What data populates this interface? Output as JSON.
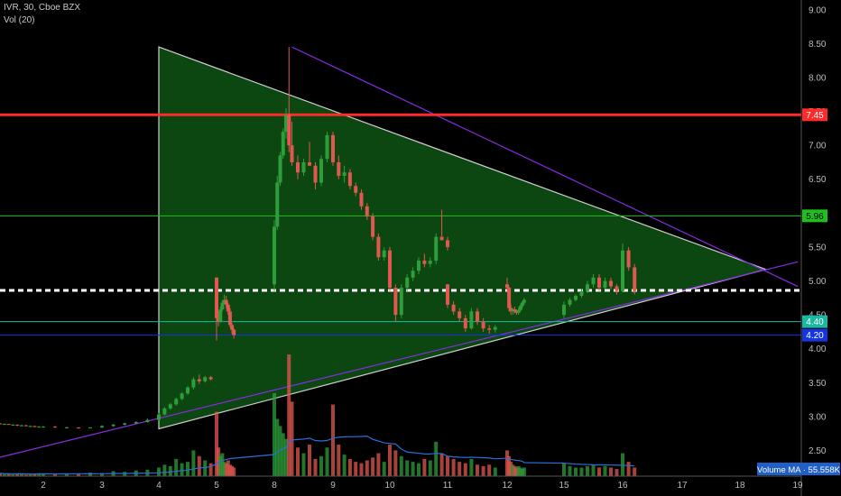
{
  "header": {
    "symbol_line": "IVR, 30, Cboe BZX",
    "volume_line": "Vol (20)"
  },
  "colors": {
    "background": "#000000",
    "up": "#2e9e3a",
    "down": "#e0584f",
    "triangle_fill": "#0d4a12",
    "triangle_edge": "#cfcfcf",
    "trendline": "#8a2be2",
    "volume_ma": "#2a6fd6"
  },
  "chart_data": {
    "type": "candlestick",
    "title": "",
    "y_axis": {
      "min": 2.4,
      "max": 9.05,
      "ticks": [
        "9.00",
        "8.50",
        "8.00",
        "7.50",
        "7.00",
        "6.50",
        "6.00",
        "5.50",
        "5.00",
        "4.50",
        "4.00",
        "3.50",
        "3.00",
        "2.50"
      ]
    },
    "x_axis": {
      "ticks": [
        "2",
        "3",
        "4",
        "5",
        "8",
        "9",
        "10",
        "11",
        "12",
        "15",
        "16",
        "17",
        "18",
        "19"
      ]
    },
    "horizontal_levels": [
      {
        "price": 7.45,
        "label": "7.45",
        "color": "#ff2a2a",
        "width": 3
      },
      {
        "price": 5.96,
        "label": "5.96",
        "color": "#1fbf1f",
        "width": 1
      },
      {
        "price": 4.86,
        "label": "",
        "color": "#ffffff",
        "width": 3,
        "style": "dashed"
      },
      {
        "price": 4.4,
        "label": "4.40",
        "color": "#19b8a0",
        "width": 1
      },
      {
        "price": 4.2,
        "label": "4.20",
        "color": "#1535e0",
        "width": 1
      }
    ],
    "triangle": {
      "points": [
        [
          4.0,
          8.45
        ],
        [
          18.45,
          5.17
        ],
        [
          4.0,
          2.82
        ]
      ]
    },
    "trendlines": [
      {
        "from": [
          0.0,
          2.4
        ],
        "to": [
          19.0,
          5.28
        ]
      },
      {
        "from": [
          8.3,
          8.45
        ],
        "to": [
          19.0,
          4.92
        ]
      }
    ],
    "candles": [
      [
        0.0,
        2.9,
        2.9,
        2.88,
        2.89
      ],
      [
        0.2,
        2.89,
        2.9,
        2.88,
        2.89
      ],
      [
        0.4,
        2.89,
        2.89,
        2.88,
        2.88
      ],
      [
        0.6,
        2.88,
        2.89,
        2.87,
        2.88
      ],
      [
        0.8,
        2.88,
        2.88,
        2.86,
        2.87
      ],
      [
        1.0,
        2.87,
        2.88,
        2.86,
        2.87
      ],
      [
        1.2,
        2.87,
        2.88,
        2.86,
        2.86
      ],
      [
        1.4,
        2.86,
        2.87,
        2.85,
        2.86
      ],
      [
        1.6,
        2.86,
        2.86,
        2.84,
        2.85
      ],
      [
        1.8,
        2.85,
        2.86,
        2.84,
        2.85
      ],
      [
        2.0,
        2.85,
        2.86,
        2.84,
        2.85
      ],
      [
        2.2,
        2.85,
        2.86,
        2.84,
        2.84
      ],
      [
        2.4,
        2.84,
        2.85,
        2.83,
        2.84
      ],
      [
        2.6,
        2.84,
        2.84,
        2.82,
        2.83
      ],
      [
        2.8,
        2.83,
        2.84,
        2.82,
        2.84
      ],
      [
        3.0,
        2.84,
        2.87,
        2.83,
        2.86
      ],
      [
        3.2,
        2.86,
        2.89,
        2.85,
        2.88
      ],
      [
        3.4,
        2.88,
        2.91,
        2.87,
        2.9
      ],
      [
        3.6,
        2.9,
        2.93,
        2.89,
        2.92
      ],
      [
        3.8,
        2.92,
        2.97,
        2.91,
        2.95
      ],
      [
        4.0,
        2.95,
        3.05,
        2.94,
        3.03
      ],
      [
        4.1,
        3.03,
        3.14,
        3.02,
        3.12
      ],
      [
        4.2,
        3.12,
        3.2,
        3.1,
        3.18
      ],
      [
        4.3,
        3.18,
        3.28,
        3.16,
        3.26
      ],
      [
        4.4,
        3.26,
        3.36,
        3.24,
        3.34
      ],
      [
        4.5,
        3.34,
        3.45,
        3.32,
        3.43
      ],
      [
        4.6,
        3.43,
        3.58,
        3.4,
        3.55
      ],
      [
        4.7,
        3.55,
        3.62,
        3.48,
        3.52
      ],
      [
        4.8,
        3.52,
        3.6,
        3.5,
        3.58
      ],
      [
        4.9,
        3.58,
        3.6,
        3.53,
        3.55
      ],
      [
        5.0,
        5.05,
        5.05,
        4.12,
        4.45
      ],
      [
        5.1,
        4.45,
        4.55,
        4.33,
        4.4
      ],
      [
        5.2,
        4.4,
        4.62,
        4.38,
        4.58
      ],
      [
        5.3,
        4.58,
        4.72,
        4.55,
        4.68
      ],
      [
        5.4,
        4.68,
        4.8,
        4.66,
        4.72
      ],
      [
        5.5,
        4.72,
        4.78,
        4.6,
        4.65
      ],
      [
        5.6,
        4.65,
        4.68,
        4.5,
        4.55
      ],
      [
        5.7,
        4.55,
        4.6,
        4.32,
        4.35
      ],
      [
        5.8,
        4.35,
        4.38,
        4.22,
        4.28
      ],
      [
        5.9,
        4.28,
        4.3,
        4.15,
        4.2
      ],
      [
        8.0,
        4.95,
        5.9,
        4.85,
        5.8
      ],
      [
        8.05,
        5.8,
        6.55,
        5.75,
        6.45
      ],
      [
        8.1,
        6.45,
        6.9,
        6.4,
        6.85
      ],
      [
        8.15,
        6.85,
        7.25,
        6.8,
        7.2
      ],
      [
        8.2,
        7.2,
        7.55,
        7.1,
        7.45
      ],
      [
        8.25,
        7.45,
        8.45,
        6.9,
        7.0
      ],
      [
        8.3,
        7.0,
        7.35,
        6.7,
        6.75
      ],
      [
        8.4,
        6.75,
        6.85,
        6.5,
        6.6
      ],
      [
        8.5,
        6.6,
        6.8,
        6.55,
        6.75
      ],
      [
        8.6,
        6.75,
        7.05,
        6.7,
        6.7
      ],
      [
        8.7,
        6.7,
        6.75,
        6.35,
        6.45
      ],
      [
        8.8,
        6.45,
        6.85,
        6.4,
        6.8
      ],
      [
        8.9,
        6.8,
        7.2,
        6.75,
        7.15
      ],
      [
        9.0,
        7.15,
        7.2,
        6.7,
        6.75
      ],
      [
        9.1,
        6.75,
        6.85,
        6.5,
        6.55
      ],
      [
        9.2,
        6.55,
        6.7,
        6.45,
        6.6
      ],
      [
        9.3,
        6.6,
        6.65,
        6.35,
        6.4
      ],
      [
        9.4,
        6.4,
        6.45,
        6.25,
        6.3
      ],
      [
        9.5,
        6.3,
        6.35,
        6.05,
        6.1
      ],
      [
        9.6,
        6.1,
        6.15,
        5.9,
        5.95
      ],
      [
        9.7,
        5.95,
        6.0,
        5.6,
        5.65
      ],
      [
        9.8,
        5.65,
        5.7,
        5.3,
        5.35
      ],
      [
        9.9,
        5.35,
        5.5,
        5.3,
        5.45
      ],
      [
        10.0,
        5.45,
        5.5,
        4.85,
        4.9
      ],
      [
        10.1,
        4.9,
        4.95,
        4.4,
        4.5
      ],
      [
        10.2,
        4.5,
        4.95,
        4.45,
        4.9
      ],
      [
        10.3,
        4.9,
        5.1,
        4.85,
        5.05
      ],
      [
        10.4,
        5.05,
        5.2,
        5.0,
        5.15
      ],
      [
        10.5,
        5.15,
        5.35,
        5.1,
        5.3
      ],
      [
        10.6,
        5.3,
        5.4,
        5.2,
        5.25
      ],
      [
        10.7,
        5.25,
        5.35,
        5.2,
        5.3
      ],
      [
        10.8,
        5.3,
        5.7,
        5.25,
        5.65
      ],
      [
        10.9,
        5.65,
        6.05,
        5.6,
        5.6
      ],
      [
        11.0,
        5.6,
        5.65,
        5.45,
        5.5
      ],
      [
        11.0,
        4.95,
        4.95,
        4.6,
        4.65
      ],
      [
        11.1,
        4.65,
        4.7,
        4.5,
        4.55
      ],
      [
        11.2,
        4.55,
        4.6,
        4.4,
        4.45
      ],
      [
        11.3,
        4.45,
        4.5,
        4.25,
        4.3
      ],
      [
        11.4,
        4.3,
        4.6,
        4.28,
        4.55
      ],
      [
        11.5,
        4.55,
        4.6,
        4.35,
        4.4
      ],
      [
        11.6,
        4.4,
        4.45,
        4.25,
        4.3
      ],
      [
        11.7,
        4.3,
        4.35,
        4.22,
        4.28
      ],
      [
        11.8,
        4.28,
        4.35,
        4.24,
        4.32
      ],
      [
        12.0,
        4.95,
        5.05,
        4.85,
        4.9
      ],
      [
        12.1,
        4.9,
        4.92,
        4.55,
        4.6
      ],
      [
        12.2,
        4.6,
        4.65,
        4.5,
        4.55
      ],
      [
        12.3,
        4.55,
        4.6,
        4.5,
        4.58
      ],
      [
        12.4,
        4.58,
        4.62,
        4.52,
        4.55
      ],
      [
        12.5,
        4.55,
        4.58,
        4.5,
        4.53
      ],
      [
        12.6,
        4.53,
        4.6,
        4.5,
        4.57
      ],
      [
        12.7,
        4.57,
        4.65,
        4.55,
        4.63
      ],
      [
        12.8,
        4.63,
        4.7,
        4.6,
        4.68
      ],
      [
        12.9,
        4.68,
        4.75,
        4.65,
        4.72
      ],
      [
        15.0,
        4.5,
        4.7,
        4.45,
        4.65
      ],
      [
        15.1,
        4.65,
        4.75,
        4.62,
        4.72
      ],
      [
        15.2,
        4.72,
        4.8,
        4.7,
        4.78
      ],
      [
        15.3,
        4.78,
        4.88,
        4.75,
        4.85
      ],
      [
        15.4,
        4.85,
        5.0,
        4.82,
        4.95
      ],
      [
        15.5,
        4.95,
        5.1,
        4.9,
        5.05
      ],
      [
        15.6,
        5.05,
        5.1,
        4.85,
        4.9
      ],
      [
        15.7,
        4.9,
        5.05,
        4.88,
        5.0
      ],
      [
        15.8,
        5.0,
        5.05,
        4.88,
        4.92
      ],
      [
        15.9,
        4.92,
        4.95,
        4.8,
        4.85
      ],
      [
        16.0,
        4.85,
        5.55,
        4.83,
        5.45
      ],
      [
        16.1,
        5.45,
        5.5,
        5.15,
        5.2
      ],
      [
        16.2,
        5.2,
        5.25,
        4.8,
        4.85
      ]
    ],
    "volumes": [
      [
        0.0,
        0.2
      ],
      [
        0.2,
        0.15
      ],
      [
        0.4,
        0.18
      ],
      [
        0.6,
        0.12
      ],
      [
        0.8,
        0.2
      ],
      [
        1.0,
        0.15
      ],
      [
        1.2,
        0.1
      ],
      [
        1.4,
        0.12
      ],
      [
        1.6,
        0.18
      ],
      [
        1.8,
        0.2
      ],
      [
        2.0,
        0.15
      ],
      [
        2.2,
        0.12
      ],
      [
        2.4,
        0.18
      ],
      [
        2.6,
        0.2
      ],
      [
        2.8,
        0.25
      ],
      [
        3.0,
        0.22
      ],
      [
        3.2,
        0.35
      ],
      [
        3.4,
        0.3
      ],
      [
        3.6,
        0.4
      ],
      [
        3.8,
        0.45
      ],
      [
        4.0,
        0.6
      ],
      [
        4.1,
        0.8
      ],
      [
        4.2,
        0.7
      ],
      [
        4.3,
        1.2
      ],
      [
        4.4,
        0.9
      ],
      [
        4.5,
        1.0
      ],
      [
        4.6,
        1.8
      ],
      [
        4.7,
        1.4
      ],
      [
        4.8,
        1.1
      ],
      [
        4.9,
        0.9
      ],
      [
        5.0,
        4.5
      ],
      [
        5.1,
        2.0
      ],
      [
        5.2,
        1.4
      ],
      [
        5.3,
        1.6
      ],
      [
        5.4,
        1.0
      ],
      [
        5.5,
        0.9
      ],
      [
        5.6,
        1.1
      ],
      [
        5.7,
        0.8
      ],
      [
        5.8,
        0.7
      ],
      [
        5.9,
        0.6
      ],
      [
        8.0,
        5.8
      ],
      [
        8.05,
        4.0
      ],
      [
        8.1,
        3.5
      ],
      [
        8.15,
        3.0
      ],
      [
        8.2,
        2.6
      ],
      [
        8.25,
        8.5
      ],
      [
        8.3,
        5.2
      ],
      [
        8.4,
        2.0
      ],
      [
        8.5,
        1.6
      ],
      [
        8.6,
        2.2
      ],
      [
        8.7,
        1.2
      ],
      [
        8.8,
        1.4
      ],
      [
        8.9,
        2.0
      ],
      [
        9.0,
        5.0
      ],
      [
        9.1,
        2.2
      ],
      [
        9.2,
        1.5
      ],
      [
        9.3,
        1.2
      ],
      [
        9.4,
        1.0
      ],
      [
        9.5,
        0.9
      ],
      [
        9.6,
        1.1
      ],
      [
        9.7,
        1.3
      ],
      [
        9.8,
        1.6
      ],
      [
        9.9,
        1.0
      ],
      [
        10.0,
        2.2
      ],
      [
        10.1,
        1.8
      ],
      [
        10.2,
        1.4
      ],
      [
        10.3,
        1.1
      ],
      [
        10.4,
        1.0
      ],
      [
        10.5,
        0.9
      ],
      [
        10.6,
        1.2
      ],
      [
        10.7,
        1.1
      ],
      [
        10.8,
        2.4
      ],
      [
        10.9,
        1.6
      ],
      [
        11.0,
        1.4
      ],
      [
        11.1,
        1.2
      ],
      [
        11.2,
        1.0
      ],
      [
        11.3,
        0.9
      ],
      [
        11.4,
        1.2
      ],
      [
        11.5,
        0.8
      ],
      [
        11.6,
        0.7
      ],
      [
        11.7,
        0.8
      ],
      [
        11.8,
        0.6
      ],
      [
        12.0,
        1.8
      ],
      [
        12.1,
        1.4
      ],
      [
        12.2,
        1.0
      ],
      [
        12.3,
        0.8
      ],
      [
        12.4,
        0.7
      ],
      [
        12.5,
        0.6
      ],
      [
        12.6,
        0.7
      ],
      [
        12.7,
        0.6
      ],
      [
        12.8,
        0.5
      ],
      [
        12.9,
        0.6
      ],
      [
        15.0,
        0.9
      ],
      [
        15.1,
        0.7
      ],
      [
        15.2,
        0.6
      ],
      [
        15.3,
        0.6
      ],
      [
        15.4,
        0.7
      ],
      [
        15.5,
        0.8
      ],
      [
        15.6,
        0.6
      ],
      [
        15.7,
        0.7
      ],
      [
        15.8,
        0.6
      ],
      [
        15.9,
        0.5
      ],
      [
        16.0,
        1.6
      ],
      [
        16.1,
        1.0
      ],
      [
        16.2,
        0.6
      ]
    ],
    "volume_ma_label": "Volume MA · 55.558K"
  }
}
